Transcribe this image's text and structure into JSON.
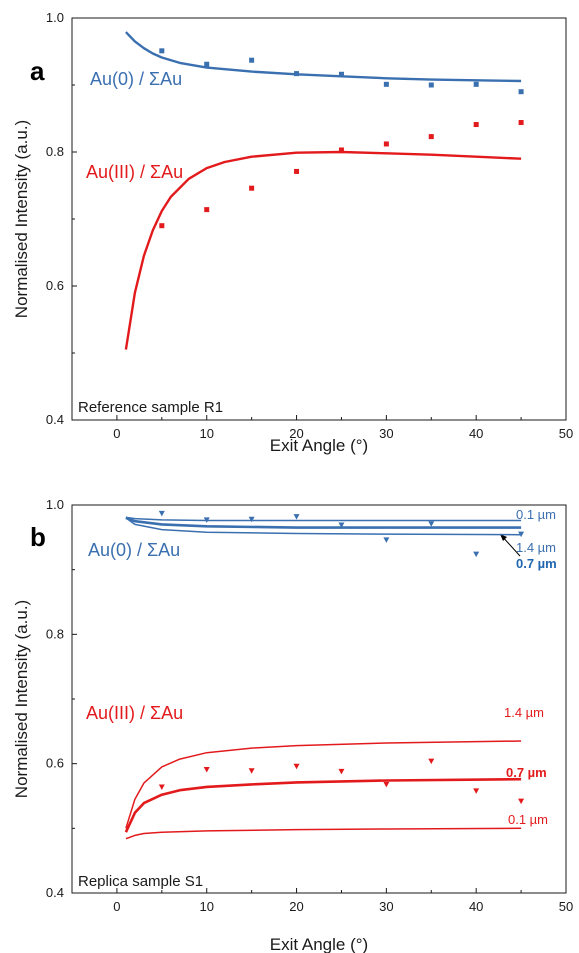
{
  "chart_data": [
    {
      "type": "scatter",
      "panel_label": "a",
      "sample_label": "Reference sample R1",
      "xlabel": "Exit Angle (°)",
      "ylabel": "Normalised Intensity (a.u.)",
      "xlim": [
        -5,
        50
      ],
      "ylim": [
        0.4,
        1.0
      ],
      "xticks": [
        0,
        10,
        20,
        30,
        40,
        50
      ],
      "yticks": [
        0.4,
        0.6,
        0.8,
        1.0
      ],
      "series": [
        {
          "name": "Au(0) / ΣAu",
          "color": "#3a6fb0",
          "kind": "points",
          "marker": "square",
          "x": [
            5,
            10,
            15,
            20,
            25,
            30,
            35,
            40,
            45
          ],
          "y": [
            0.951,
            0.931,
            0.937,
            0.917,
            0.916,
            0.901,
            0.9,
            0.901,
            0.89
          ]
        },
        {
          "name": "Au(0) / ΣAu fit",
          "color": "#3a6fb0",
          "kind": "line",
          "x": [
            1,
            2,
            3,
            4,
            5,
            7,
            10,
            15,
            20,
            25,
            30,
            35,
            40,
            45
          ],
          "y": [
            0.979,
            0.965,
            0.955,
            0.947,
            0.941,
            0.933,
            0.926,
            0.92,
            0.916,
            0.913,
            0.91,
            0.908,
            0.907,
            0.906
          ]
        },
        {
          "name": "Au(III) / ΣAu",
          "color": "#e31a1c",
          "kind": "points",
          "marker": "square",
          "x": [
            5,
            10,
            15,
            20,
            25,
            30,
            35,
            40,
            45
          ],
          "y": [
            0.69,
            0.714,
            0.746,
            0.771,
            0.803,
            0.812,
            0.823,
            0.841,
            0.844
          ]
        },
        {
          "name": "Au(III) / ΣAu fit",
          "color": "#e31a1c",
          "kind": "line",
          "x": [
            1,
            2,
            3,
            4,
            5,
            6,
            8,
            10,
            12,
            15,
            20,
            25,
            30,
            35,
            40,
            45
          ],
          "y": [
            0.505,
            0.59,
            0.645,
            0.683,
            0.712,
            0.733,
            0.76,
            0.776,
            0.785,
            0.793,
            0.799,
            0.8,
            0.798,
            0.796,
            0.793,
            0.79
          ]
        }
      ],
      "annotations": [
        "Au(0) / ΣAu",
        "Au(III) / ΣAu"
      ]
    },
    {
      "type": "scatter",
      "panel_label": "b",
      "sample_label": "Replica sample S1",
      "xlabel": "Exit Angle (°)",
      "ylabel": "Normalised Intensity (a.u.)",
      "xlim": [
        -5,
        50
      ],
      "ylim": [
        0.4,
        1.0
      ],
      "xticks": [
        0,
        10,
        20,
        30,
        40,
        50
      ],
      "yticks": [
        0.4,
        0.6,
        0.8,
        1.0
      ],
      "series": [
        {
          "name": "Au(0) / ΣAu",
          "color": "#3a6fb0",
          "kind": "points",
          "marker": "triangle-down",
          "x": [
            5,
            10,
            15,
            20,
            25,
            30,
            35,
            40,
            45
          ],
          "y": [
            0.987,
            0.977,
            0.978,
            0.982,
            0.969,
            0.946,
            0.971,
            0.924,
            0.955
          ]
        },
        {
          "name": "0.1 µm",
          "color": "#3a6fb0",
          "kind": "line",
          "x": [
            1,
            2,
            5,
            10,
            20,
            30,
            45
          ],
          "y": [
            0.981,
            0.979,
            0.977,
            0.976,
            0.976,
            0.976,
            0.976
          ]
        },
        {
          "name": "0.7 µm",
          "color": "#3a6fb0",
          "kind": "line",
          "bold": true,
          "x": [
            1,
            2,
            5,
            10,
            20,
            30,
            45
          ],
          "y": [
            0.98,
            0.975,
            0.97,
            0.967,
            0.965,
            0.965,
            0.965
          ]
        },
        {
          "name": "1.4 µm",
          "color": "#3a6fb0",
          "kind": "line",
          "x": [
            1,
            2,
            5,
            10,
            20,
            30,
            45
          ],
          "y": [
            0.98,
            0.97,
            0.962,
            0.958,
            0.956,
            0.955,
            0.954
          ]
        },
        {
          "name": "Au(III) / ΣAu",
          "color": "#e31a1c",
          "kind": "points",
          "marker": "triangle-down",
          "x": [
            5,
            10,
            15,
            20,
            25,
            30,
            35,
            40,
            45
          ],
          "y": [
            0.564,
            0.591,
            0.589,
            0.596,
            0.588,
            0.568,
            0.604,
            0.558,
            0.542
          ]
        },
        {
          "name": "1.4 µm",
          "color": "#e31a1c",
          "kind": "line",
          "x": [
            1,
            2,
            3,
            5,
            7,
            10,
            15,
            20,
            30,
            45
          ],
          "y": [
            0.5,
            0.545,
            0.57,
            0.595,
            0.607,
            0.617,
            0.624,
            0.628,
            0.632,
            0.635
          ]
        },
        {
          "name": "0.7 µm",
          "color": "#e31a1c",
          "kind": "line",
          "bold": true,
          "x": [
            1,
            2,
            3,
            5,
            7,
            10,
            15,
            20,
            30,
            45
          ],
          "y": [
            0.494,
            0.524,
            0.539,
            0.552,
            0.559,
            0.564,
            0.568,
            0.571,
            0.574,
            0.576
          ]
        },
        {
          "name": "0.1 µm",
          "color": "#e31a1c",
          "kind": "line",
          "x": [
            1,
            2,
            3,
            5,
            10,
            20,
            30,
            45
          ],
          "y": [
            0.484,
            0.489,
            0.492,
            0.494,
            0.496,
            0.498,
            0.499,
            0.5
          ]
        }
      ],
      "annotations": [
        "Au(0) / ΣAu",
        "Au(III) / ΣAu",
        "0.1 µm",
        "1.4 µm",
        "0.7 µm",
        "1.4 µm",
        "0.7 µm",
        "0.1 µm"
      ]
    }
  ]
}
